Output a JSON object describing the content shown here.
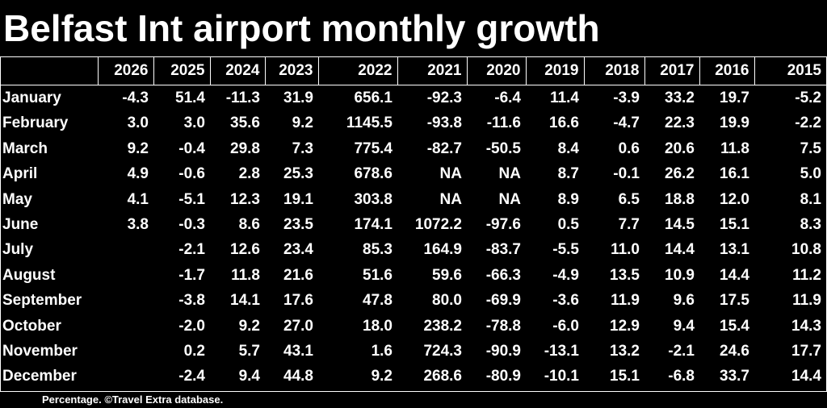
{
  "title": "Belfast Int airport monthly growth",
  "footer": "Percentage. ©Travel Extra database.",
  "chart_data": {
    "type": "table",
    "title": "Belfast Int airport monthly growth",
    "columns": [
      "2026",
      "2025",
      "2024",
      "2023",
      "2022",
      "2021",
      "2020",
      "2019",
      "2018",
      "2017",
      "2016",
      "2015"
    ],
    "rows": [
      {
        "month": "January",
        "values": [
          "-4.3",
          "51.4",
          "-11.3",
          "31.9",
          "656.1",
          "-92.3",
          "-6.4",
          "11.4",
          "-3.9",
          "33.2",
          "19.7",
          "-5.2"
        ]
      },
      {
        "month": "February",
        "values": [
          "3.0",
          "3.0",
          "35.6",
          "9.2",
          "1145.5",
          "-93.8",
          "-11.6",
          "16.6",
          "-4.7",
          "22.3",
          "19.9",
          "-2.2"
        ]
      },
      {
        "month": "March",
        "values": [
          "9.2",
          "-0.4",
          "29.8",
          "7.3",
          "775.4",
          "-82.7",
          "-50.5",
          "8.4",
          "0.6",
          "20.6",
          "11.8",
          "7.5"
        ]
      },
      {
        "month": "April",
        "values": [
          "4.9",
          "-0.6",
          "2.8",
          "25.3",
          "678.6",
          "NA",
          "NA",
          "8.7",
          "-0.1",
          "26.2",
          "16.1",
          "5.0"
        ]
      },
      {
        "month": "May",
        "values": [
          "4.1",
          "-5.1",
          "12.3",
          "19.1",
          "303.8",
          "NA",
          "NA",
          "8.9",
          "6.5",
          "18.8",
          "12.0",
          "8.1"
        ]
      },
      {
        "month": "June",
        "values": [
          "3.8",
          "-0.3",
          "8.6",
          "23.5",
          "174.1",
          "1072.2",
          "-97.6",
          "0.5",
          "7.7",
          "14.5",
          "15.1",
          "8.3"
        ]
      },
      {
        "month": "July",
        "values": [
          "",
          "-2.1",
          "12.6",
          "23.4",
          "85.3",
          "164.9",
          "-83.7",
          "-5.5",
          "11.0",
          "14.4",
          "13.1",
          "10.8"
        ]
      },
      {
        "month": "August",
        "values": [
          "",
          "-1.7",
          "11.8",
          "21.6",
          "51.6",
          "59.6",
          "-66.3",
          "-4.9",
          "13.5",
          "10.9",
          "14.4",
          "11.2"
        ]
      },
      {
        "month": "September",
        "values": [
          "",
          "-3.8",
          "14.1",
          "17.6",
          "47.8",
          "80.0",
          "-69.9",
          "-3.6",
          "11.9",
          "9.6",
          "17.5",
          "11.9"
        ]
      },
      {
        "month": "October",
        "values": [
          "",
          "-2.0",
          "9.2",
          "27.0",
          "18.0",
          "238.2",
          "-78.8",
          "-6.0",
          "12.9",
          "9.4",
          "15.4",
          "14.3"
        ]
      },
      {
        "month": "November",
        "values": [
          "",
          "0.2",
          "5.7",
          "43.1",
          "1.6",
          "724.3",
          "-90.9",
          "-13.1",
          "13.2",
          "-2.1",
          "24.6",
          "17.7"
        ]
      },
      {
        "month": "December",
        "values": [
          "",
          "-2.4",
          "9.4",
          "44.8",
          "9.2",
          "268.6",
          "-80.9",
          "-10.1",
          "15.1",
          "-6.8",
          "33.7",
          "14.4"
        ]
      }
    ]
  }
}
